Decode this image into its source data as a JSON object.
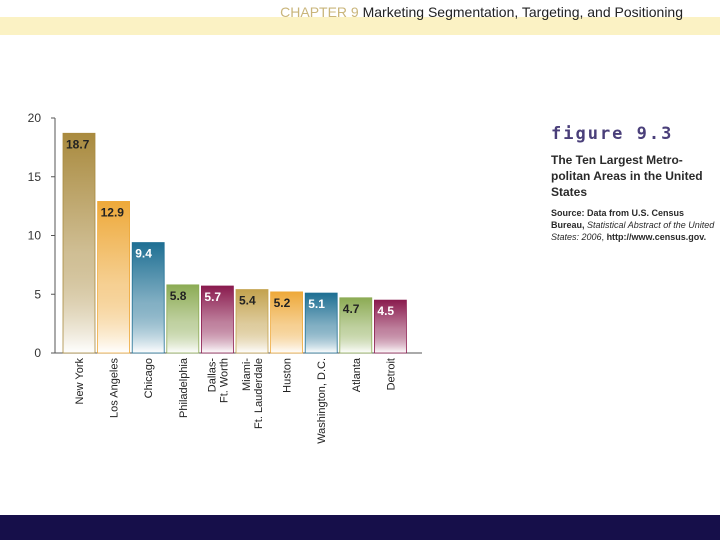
{
  "header": {
    "chapter": "CHAPTER 9",
    "title": "Marketing Segmentation, Targeting, and Positioning"
  },
  "figure": {
    "label": "figure 9.3",
    "title": "The Ten Largest Metro-politan Areas in the United States",
    "source_lead": "Source: Data from U.S. Census Bureau,",
    "source_italic": "Statistical Abstract of the United States: 2006",
    "source_url": "http://www.census.gov."
  },
  "colors": {
    "top_band": "#fbf2c4",
    "footer_band": "#160f4a",
    "figure_label": "#4a3f7a"
  },
  "chart_data": {
    "type": "bar",
    "categories": [
      [
        "New York"
      ],
      [
        "Los Angeles"
      ],
      [
        "Chicago"
      ],
      [
        "Philadelphia"
      ],
      [
        "Dallas-",
        "Ft. Worth"
      ],
      [
        "Miami-",
        "Ft. Lauderdale"
      ],
      [
        "Huston"
      ],
      [
        "Washington, D.C."
      ],
      [
        "Atlanta"
      ],
      [
        "Detroit"
      ]
    ],
    "values": [
      18.7,
      12.9,
      9.4,
      5.8,
      5.7,
      5.4,
      5.2,
      5.1,
      4.7,
      4.5
    ],
    "value_labels": [
      "18.7",
      "12.9",
      "9.4",
      "5.8",
      "5.7",
      "5.4",
      "5.2",
      "5.1",
      "4.7",
      "4.5"
    ],
    "bar_colors": [
      "#a98a3e",
      "#eea93a",
      "#1e6f93",
      "#8cab54",
      "#8a1b4e",
      "#c3a24e",
      "#eea93a",
      "#1e6f93",
      "#8cab54",
      "#8a1b4e"
    ],
    "label_colors": [
      "#222222",
      "#222222",
      "#ffffff",
      "#222222",
      "#ffffff",
      "#222222",
      "#222222",
      "#ffffff",
      "#222222",
      "#ffffff"
    ],
    "yticks": [
      "0",
      "5",
      "10",
      "15",
      "20"
    ],
    "ylim": [
      0,
      20
    ],
    "xlabel": "",
    "ylabel": "",
    "grid": false
  }
}
